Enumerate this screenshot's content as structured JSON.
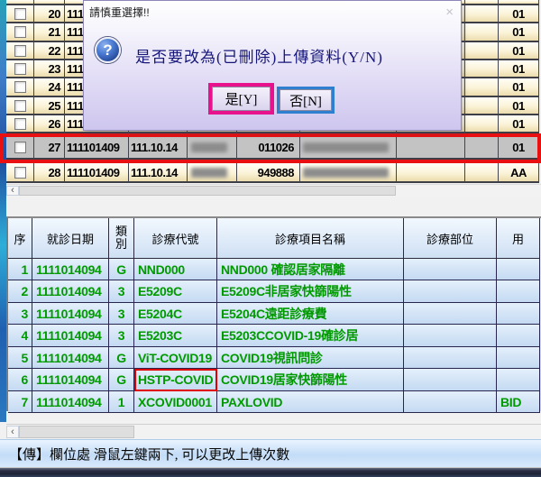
{
  "dialog": {
    "title": "請慎重選擇!!",
    "close_glyph": "×",
    "question_mark": "?",
    "message": "是否要改為(已刪除)上傳資料(Y/N)",
    "yes_button": "是[Y]",
    "no_button": "否[N]"
  },
  "top_table": {
    "rows": [
      {
        "num": "20",
        "date1": "111101409",
        "date2": "",
        "code": "",
        "upload": "01",
        "selected": false,
        "name_blurred": false,
        "pid_blurred": false
      },
      {
        "num": "21",
        "date1": "111101409",
        "date2": "",
        "code": "",
        "upload": "01",
        "selected": false,
        "name_blurred": false,
        "pid_blurred": false
      },
      {
        "num": "22",
        "date1": "111101409",
        "date2": "",
        "code": "",
        "upload": "01",
        "selected": false,
        "name_blurred": false,
        "pid_blurred": false
      },
      {
        "num": "23",
        "date1": "111101409",
        "date2": "",
        "code": "",
        "upload": "01",
        "selected": false,
        "name_blurred": false,
        "pid_blurred": false
      },
      {
        "num": "24",
        "date1": "111101409",
        "date2": "",
        "code": "",
        "upload": "01",
        "selected": false,
        "name_blurred": false,
        "pid_blurred": false
      },
      {
        "num": "25",
        "date1": "111101409",
        "date2": "",
        "code": "",
        "upload": "01",
        "selected": false,
        "name_blurred": false,
        "pid_blurred": false
      },
      {
        "num": "26",
        "date1": "111101409",
        "date2": "",
        "code": "",
        "upload": "01",
        "selected": false,
        "name_blurred": false,
        "pid_blurred": false
      },
      {
        "num": "27",
        "date1": "111101409",
        "date2": "111.10.14",
        "code": "011026",
        "upload": "01",
        "selected": true,
        "name_blurred": true,
        "pid_blurred": true
      },
      {
        "num": "28",
        "date1": "111101409",
        "date2": "111.10.14",
        "code": "949888",
        "upload": "AA",
        "selected": false,
        "name_blurred": true,
        "pid_blurred": true
      }
    ]
  },
  "detail_table": {
    "headers": {
      "seq": "序",
      "date": "就診日期",
      "cat": "類別",
      "code": "診療代號",
      "name": "診療項目名稱",
      "part": "診療部位",
      "usage": "用"
    },
    "rows": [
      {
        "seq": "1",
        "date": "1111014094",
        "cat": "G",
        "code": "NND000",
        "name": "NND000 確認居家隔離",
        "part": "",
        "usage": "",
        "code_highlighted": false
      },
      {
        "seq": "2",
        "date": "1111014094",
        "cat": "3",
        "code": "E5209C",
        "name": "E5209C非居家快篩陽性",
        "part": "",
        "usage": "",
        "code_highlighted": false
      },
      {
        "seq": "3",
        "date": "1111014094",
        "cat": "3",
        "code": "E5204C",
        "name": "E5204C遠距診療費",
        "part": "",
        "usage": "",
        "code_highlighted": false
      },
      {
        "seq": "4",
        "date": "1111014094",
        "cat": "3",
        "code": "E5203C",
        "name": "E5203CCOVID-19確診居",
        "part": "",
        "usage": "",
        "code_highlighted": false
      },
      {
        "seq": "5",
        "date": "1111014094",
        "cat": "G",
        "code": "ViT-COVID19",
        "name": "COVID19視訊問診",
        "part": "",
        "usage": "",
        "code_highlighted": false
      },
      {
        "seq": "6",
        "date": "1111014094",
        "cat": "G",
        "code": "HSTP-COVID",
        "name": "COVID19居家快篩陽性",
        "part": "",
        "usage": "",
        "code_highlighted": true
      },
      {
        "seq": "7",
        "date": "1111014094",
        "cat": "1",
        "code": "XCOVID0001",
        "name": "PAXLOVID",
        "part": "",
        "usage": "BID",
        "code_highlighted": false
      }
    ]
  },
  "scrollbars": {
    "left_arrow": "‹"
  },
  "status_bar": {
    "text": "【傳】欄位處  滑鼠左鍵兩下, 可以更改上傳次數"
  },
  "colors": {
    "green_text": "#009A00",
    "row_highlight_red": "#E81010",
    "code_box_red": "#E00000",
    "yes_border": "#E8128C",
    "no_border": "#2F7FD0"
  }
}
